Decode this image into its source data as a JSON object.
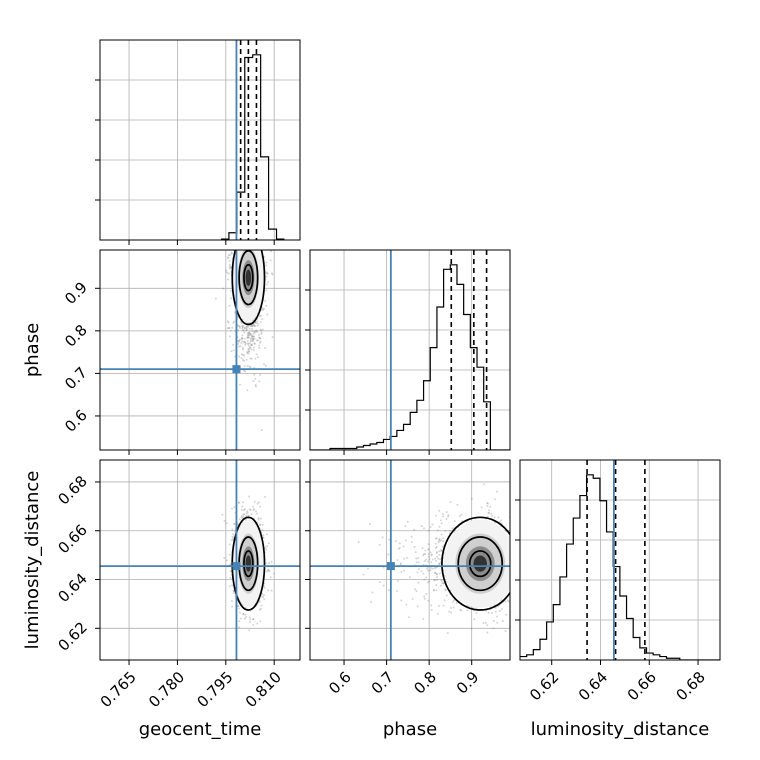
{
  "chart_data": {
    "type": "corner",
    "colors": {
      "truth": "#4682b4",
      "hist": "#000000",
      "grid": "#b0b0b0",
      "scatter": "#888888"
    },
    "parameters": [
      {
        "key": "geocent_time",
        "label": "geocent_time",
        "range": [
          0.756,
          0.818
        ],
        "ticks": [
          0.765,
          0.78,
          0.795,
          0.81
        ],
        "tick_labels": [
          "0.765",
          "0.780",
          "0.795",
          "0.810"
        ],
        "truth": 0.7983,
        "quantiles": [
          0.7996,
          0.802,
          0.8045
        ]
      },
      {
        "key": "phase",
        "label": "phase",
        "range": [
          0.52,
          0.99
        ],
        "ticks": [
          0.6,
          0.7,
          0.8,
          0.9
        ],
        "tick_labels": [
          "0.6",
          "0.7",
          "0.8",
          "0.9"
        ],
        "truth": 0.71,
        "quantiles": [
          0.852,
          0.905,
          0.935
        ]
      },
      {
        "key": "luminosity_distance",
        "label": "luminosity_distance",
        "range": [
          0.607,
          0.689
        ],
        "ticks": [
          0.62,
          0.64,
          0.66,
          0.68
        ],
        "tick_labels": [
          "0.62",
          "0.64",
          "0.66",
          "0.68"
        ],
        "truth": 0.6455,
        "quantiles": [
          0.6345,
          0.6462,
          0.6582
        ]
      }
    ],
    "histograms": [
      {
        "param": "geocent_time",
        "bin_start": 0.7935,
        "bin_width": 0.00246,
        "counts": [
          1,
          8,
          53,
          202,
          205,
          92,
          12,
          1
        ]
      },
      {
        "param": "phase",
        "bin_start": 0.52,
        "bin_width": 0.0157,
        "counts": [
          0,
          0,
          0,
          1,
          1,
          1,
          1,
          2,
          3,
          4,
          5,
          7,
          9,
          13,
          17,
          25,
          33,
          46,
          68,
          95,
          120,
          123,
          110,
          90,
          68,
          55,
          32,
          0,
          0,
          0
        ]
      },
      {
        "param": "luminosity_distance",
        "bin_start": 0.607,
        "bin_width": 0.00273,
        "counts": [
          2,
          3,
          6,
          12,
          22,
          32,
          48,
          67,
          82,
          95,
          107,
          105,
          92,
          74,
          54,
          37,
          24,
          13,
          7,
          4,
          3,
          2,
          1,
          1,
          0,
          0,
          0,
          0,
          0,
          0
        ]
      }
    ],
    "panels_2d": [
      {
        "x": "geocent_time",
        "y": "phase",
        "peak": [
          0.802,
          0.925
        ],
        "spread": [
          0.0025,
          0.055
        ]
      },
      {
        "x": "geocent_time",
        "y": "luminosity_distance",
        "peak": [
          0.802,
          0.6465
        ],
        "spread": [
          0.0025,
          0.0095
        ]
      },
      {
        "x": "phase",
        "y": "luminosity_distance",
        "peak": [
          0.92,
          0.6465
        ],
        "spread": [
          0.045,
          0.0095
        ]
      }
    ]
  }
}
